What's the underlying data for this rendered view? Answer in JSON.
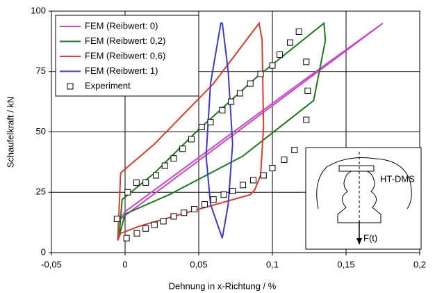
{
  "chart_data": {
    "type": "line",
    "x_label": "Dehnung in x-Richtung / %",
    "y_label": "Schaufelkraft / kN",
    "xlim": [
      -0.05,
      0.2
    ],
    "ylim": [
      0,
      100
    ],
    "xticks": [
      {
        "value": -0.05,
        "label": "-0,05"
      },
      0,
      {
        "value": 0.05,
        "label": "0,05"
      },
      {
        "value": 0.1,
        "label": "0,1"
      },
      {
        "value": 0.15,
        "label": "0,15"
      },
      {
        "value": 0.2,
        "label": "0,2"
      }
    ],
    "yticks": [
      0,
      25,
      50,
      75,
      100
    ],
    "grid": true,
    "legend": "upper left",
    "annotations": [
      "HT-DMS",
      "F(t)"
    ],
    "series": [
      {
        "name": "FEM (Reibwert: 0)",
        "color": "#cc44cc",
        "x": [
          -0.003,
          0.175,
          0.125,
          0.0,
          -0.003
        ],
        "y": [
          14,
          95,
          73,
          17,
          14
        ]
      },
      {
        "name": "FEM (Reibwert: 0,2)",
        "color": "#1a7a1a",
        "x": [
          -0.004,
          -0.002,
          0.02,
          0.05,
          0.09,
          0.135,
          0.136,
          0.128,
          0.08,
          0.03,
          0.0,
          -0.004
        ],
        "y": [
          7,
          22,
          33,
          51,
          73,
          95,
          88,
          63,
          40,
          24,
          16,
          7
        ]
      },
      {
        "name": "FEM (Reibwert: 0,6)",
        "color": "#e03a2a",
        "x": [
          -0.005,
          -0.003,
          0.02,
          0.06,
          0.091,
          0.093,
          0.094,
          0.092,
          0.088,
          0.085,
          0.05,
          0.01,
          -0.003,
          -0.005
        ],
        "y": [
          5,
          33,
          45,
          70,
          95,
          88,
          52,
          32,
          26,
          24,
          18,
          11,
          8,
          5
        ]
      },
      {
        "name": "FEM (Reibwert: 1)",
        "color": "#3a3ad0",
        "x": [
          0.066,
          0.07,
          0.073,
          0.07,
          0.066,
          0.065,
          0.058,
          0.055,
          0.058,
          0.066
        ],
        "y": [
          6,
          20,
          45,
          75,
          95,
          95,
          70,
          40,
          20,
          6
        ]
      },
      {
        "name": "Experiment",
        "color": "#000000",
        "marker": "square",
        "x": [
          -0.0055,
          0.001,
          0.008,
          0.014,
          0.02,
          0.026,
          0.033,
          0.04,
          0.047,
          0.054,
          0.06,
          0.067,
          0.073,
          0.08,
          0.087,
          0.094,
          0.1,
          0.108,
          0.115,
          0.123,
          0.124,
          0.123,
          0.118,
          0.112,
          0.105,
          0.1,
          0.092,
          0.085,
          0.078,
          0.072,
          0.066,
          0.058,
          0.052,
          0.045,
          0.039,
          0.033,
          0.027,
          0.021,
          0.014,
          0.0077,
          0.0018
        ],
        "y": [
          14,
          6,
          8,
          10,
          11.5,
          13,
          15,
          16.5,
          18,
          20,
          22,
          24,
          25.5,
          28,
          30,
          32,
          35,
          38.5,
          42.5,
          55,
          67,
          79,
          91.5,
          87,
          82,
          77.5,
          74,
          70,
          66,
          62.5,
          59,
          54,
          52,
          47,
          43,
          39,
          36,
          32,
          29,
          29,
          25
        ]
      }
    ]
  }
}
